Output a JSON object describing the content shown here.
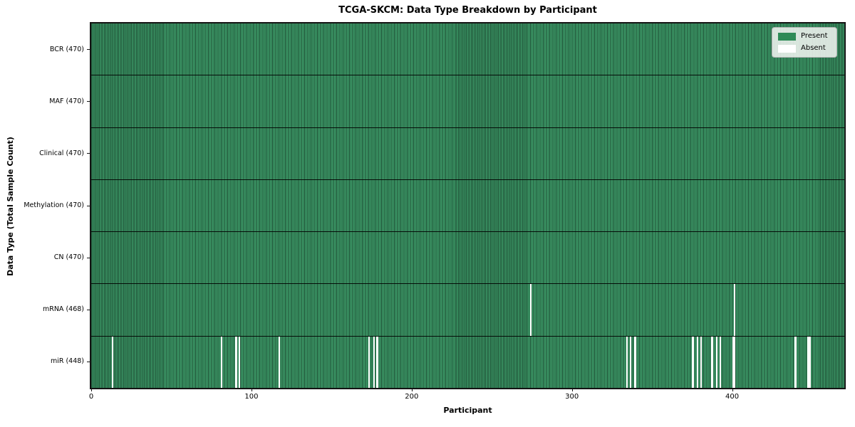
{
  "figure": {
    "title": "TCGA-SKCM: Data Type Breakdown by Participant",
    "xlabel": "Participant",
    "ylabel": "Data Type (Total Sample Count)"
  },
  "chart_data": {
    "type": "heatmap",
    "title": "TCGA-SKCM: Data Type Breakdown by Participant",
    "xlabel": "Participant",
    "ylabel": "Data Type (Total Sample Count)",
    "x_range": [
      0,
      470
    ],
    "x_ticks": [
      0,
      100,
      200,
      300,
      400
    ],
    "n_participants": 470,
    "grid": false,
    "legend_position": "upper right",
    "legend": [
      {
        "label": "Present",
        "color": "#2e8b57"
      },
      {
        "label": "Absent",
        "color": "#ffffff"
      }
    ],
    "colors": {
      "present_fill": "#3c9867",
      "present_edge": "#1f5136",
      "absent": "#ffffff",
      "border": "#141414"
    },
    "rows": [
      {
        "label": "BCR (470)",
        "data_type": "BCR",
        "present_count": 470,
        "absent_participants": []
      },
      {
        "label": "MAF (470)",
        "data_type": "MAF",
        "present_count": 470,
        "absent_participants": []
      },
      {
        "label": "Clinical (470)",
        "data_type": "Clinical",
        "present_count": 470,
        "absent_participants": []
      },
      {
        "label": "Methylation (470)",
        "data_type": "Methylation",
        "present_count": 470,
        "absent_participants": []
      },
      {
        "label": "CN (470)",
        "data_type": "CN",
        "present_count": 470,
        "absent_participants": []
      },
      {
        "label": "mRNA (468)",
        "data_type": "mRNA",
        "present_count": 468,
        "absent_participants": [
          274,
          401
        ]
      },
      {
        "label": "miR (448)",
        "data_type": "miR",
        "present_count": 448,
        "absent_participants": [
          13,
          81,
          90,
          92,
          117,
          173,
          176,
          178,
          334,
          336,
          339,
          375,
          378,
          380,
          387,
          390,
          392,
          400,
          401,
          439,
          447,
          448
        ]
      }
    ]
  }
}
